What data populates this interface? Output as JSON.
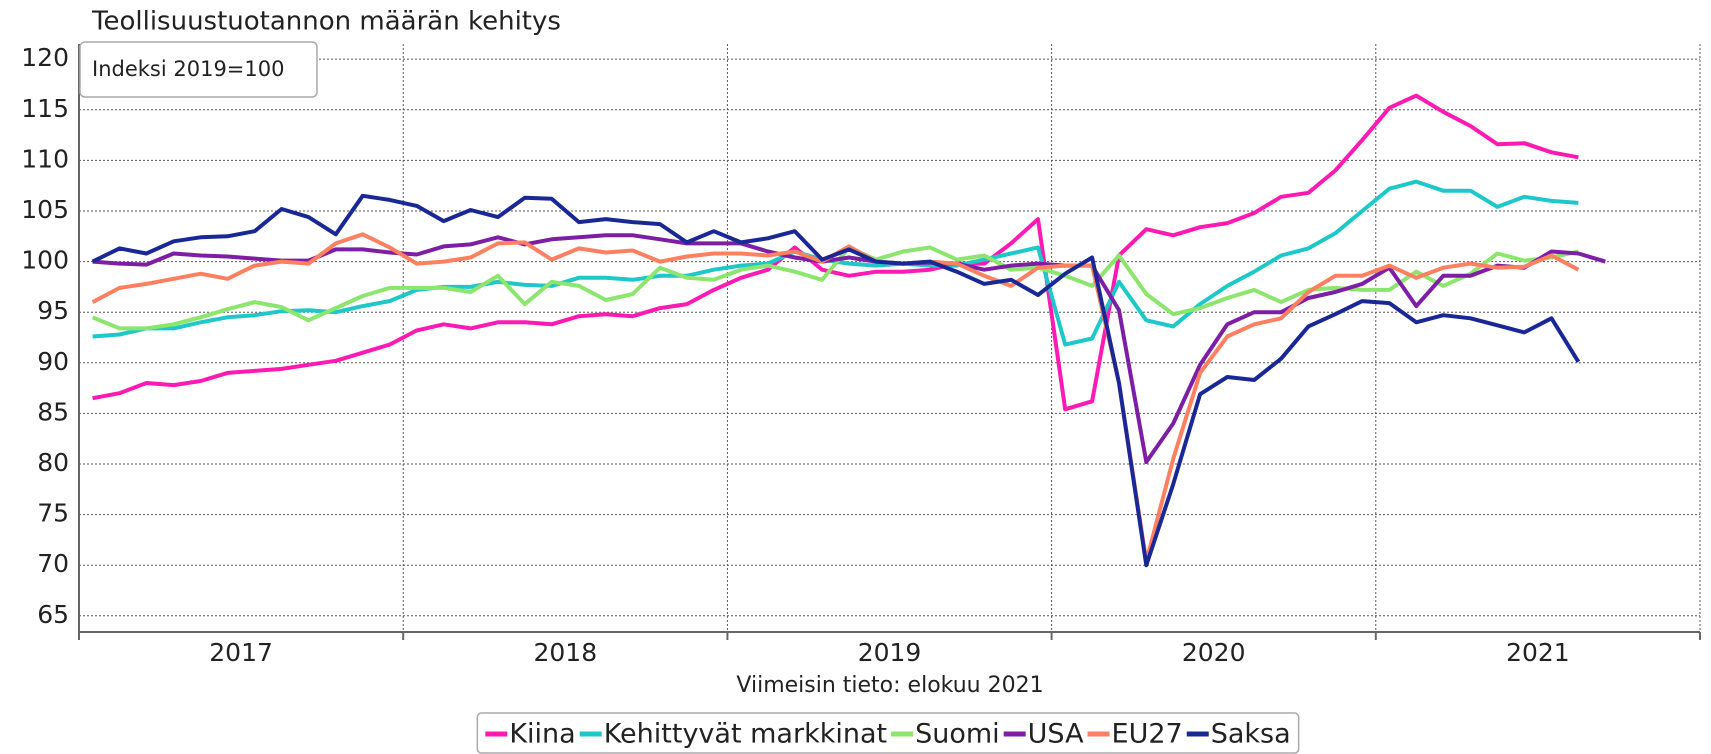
{
  "chart_data": {
    "type": "line",
    "subtitle": "Teollisuustuotannon määrän kehitys",
    "annotation": "Indeksi 2019=100",
    "x_label": "Viimeisin tieto: elokuu 2021",
    "xlim": [
      2017,
      2022
    ],
    "xticks": [
      2017,
      2018,
      2019,
      2020,
      2021,
      2022
    ],
    "ylim": [
      63.4,
      121.5
    ],
    "yticks": [
      65,
      70,
      75,
      80,
      85,
      90,
      95,
      100,
      105,
      110,
      115,
      120
    ],
    "grid": true,
    "legend": "bottom",
    "x": [
      2017.042,
      2017.125,
      2017.208,
      2017.292,
      2017.375,
      2017.458,
      2017.542,
      2017.625,
      2017.708,
      2017.792,
      2017.875,
      2017.958,
      2018.042,
      2018.125,
      2018.208,
      2018.292,
      2018.375,
      2018.458,
      2018.542,
      2018.625,
      2018.708,
      2018.792,
      2018.875,
      2018.958,
      2019.042,
      2019.125,
      2019.208,
      2019.292,
      2019.375,
      2019.458,
      2019.542,
      2019.625,
      2019.708,
      2019.792,
      2019.875,
      2019.958,
      2020.042,
      2020.125,
      2020.208,
      2020.292,
      2020.375,
      2020.458,
      2020.542,
      2020.625,
      2020.708,
      2020.792,
      2020.875,
      2020.958,
      2021.042,
      2021.125,
      2021.208,
      2021.292,
      2021.375,
      2021.458,
      2021.542,
      2021.625,
      2021.708
    ],
    "series": [
      {
        "name": "Kiina",
        "color": "#ff1ab3",
        "values": [
          86.5,
          87,
          88,
          87.8,
          88.2,
          89,
          89.2,
          89.4,
          89.8,
          90.2,
          91,
          91.8,
          93.2,
          93.8,
          93.4,
          94,
          94,
          93.8,
          94.6,
          94.8,
          94.6,
          95.4,
          95.8,
          97.2,
          98.4,
          99.2,
          101.4,
          99.2,
          98.6,
          99,
          99,
          99.2,
          99.8,
          99.8,
          101.8,
          104.2,
          85.4,
          86.2,
          100.6,
          103.2,
          102.6,
          103.4,
          103.8,
          104.8,
          106.4,
          106.8,
          109,
          112,
          115.2,
          116.4,
          114.8,
          113.4,
          111.6,
          111.7,
          110.8,
          110.3,
          null
        ]
      },
      {
        "name": "Kehittyvät markkinat",
        "color": "#1ec8c8",
        "values": [
          92.6,
          92.8,
          93.4,
          93.4,
          94,
          94.5,
          94.7,
          95.1,
          95.2,
          95,
          95.6,
          96.1,
          97.2,
          97.5,
          97.5,
          98,
          97.7,
          97.6,
          98.4,
          98.4,
          98.2,
          98.6,
          98.6,
          99.2,
          99.6,
          99.8,
          101,
          100.2,
          99.8,
          99.6,
          99.8,
          99.6,
          99.6,
          100.2,
          100.8,
          101.4,
          91.8,
          92.4,
          98,
          94.2,
          93.6,
          95.8,
          97.6,
          99,
          100.6,
          101.3,
          102.8,
          105,
          107.2,
          107.9,
          107,
          107,
          105.4,
          106.4,
          106,
          105.8,
          null
        ]
      },
      {
        "name": "Suomi",
        "color": "#8ce66e",
        "values": [
          94.5,
          93.4,
          93.4,
          93.8,
          94.5,
          95.3,
          96,
          95.5,
          94.2,
          95.4,
          96.6,
          97.4,
          97.4,
          97.4,
          97,
          98.6,
          95.8,
          98,
          97.6,
          96.2,
          96.8,
          99.4,
          98.4,
          98.2,
          99.2,
          99.6,
          99,
          98.2,
          101.4,
          100.2,
          101,
          101.4,
          100.2,
          100.6,
          99.2,
          99.4,
          98.6,
          97.6,
          100.6,
          96.8,
          94.8,
          95.4,
          96.4,
          97.2,
          96,
          97.2,
          97.4,
          97.2,
          97.2,
          99,
          97.6,
          98.8,
          100.8,
          100.1,
          100.4,
          101,
          null
        ]
      },
      {
        "name": "USA",
        "color": "#7d1ea5",
        "values": [
          100,
          99.8,
          99.7,
          100.8,
          100.6,
          100.5,
          100.3,
          100.1,
          100.1,
          101.2,
          101.2,
          100.9,
          100.7,
          101.5,
          101.7,
          102.4,
          101.7,
          102.2,
          102.4,
          102.6,
          102.6,
          102.2,
          101.8,
          101.8,
          101.8,
          101,
          100.4,
          100,
          100.4,
          100,
          99.8,
          99.9,
          99.8,
          99.2,
          99.6,
          99.8,
          99.6,
          99.6,
          95.2,
          80.2,
          84,
          89.8,
          93.8,
          95,
          95,
          96.4,
          97,
          97.8,
          99.4,
          95.6,
          98.6,
          98.6,
          99.6,
          99.4,
          101,
          100.8,
          100
        ]
      },
      {
        "name": "EU27",
        "color": "#ff8060",
        "values": [
          96,
          97.4,
          97.8,
          98.3,
          98.8,
          98.3,
          99.6,
          100,
          99.8,
          101.8,
          102.7,
          101.4,
          99.8,
          100,
          100.4,
          101.8,
          101.9,
          100.2,
          101.3,
          100.9,
          101.1,
          100,
          100.5,
          100.8,
          100.8,
          100.6,
          101,
          100,
          101.5,
          100,
          99.8,
          100,
          99.8,
          98.6,
          97.6,
          99.4,
          99.6,
          99.6,
          88,
          70.4,
          80.5,
          89,
          92.6,
          93.8,
          94.4,
          97,
          98.6,
          98.6,
          99.6,
          98.4,
          99.4,
          99.8,
          99.4,
          99.5,
          100.6,
          99.2,
          null
        ]
      },
      {
        "name": "Saksa",
        "color": "#1a2896",
        "values": [
          100,
          101.3,
          100.8,
          102,
          102.4,
          102.5,
          103,
          105.2,
          104.4,
          102.7,
          106.5,
          106.1,
          105.5,
          104,
          105.1,
          104.4,
          106.3,
          106.2,
          103.9,
          104.2,
          103.9,
          103.7,
          101.9,
          103,
          101.9,
          102.3,
          103,
          100.2,
          101.2,
          100,
          99.8,
          100,
          99,
          97.8,
          98.2,
          96.7,
          98.8,
          100.4,
          88,
          70,
          78,
          86.9,
          88.6,
          88.3,
          90.4,
          93.6,
          94.8,
          96.1,
          95.9,
          94,
          94.7,
          94.4,
          93.7,
          93,
          94.4,
          90.1,
          null
        ]
      }
    ]
  }
}
